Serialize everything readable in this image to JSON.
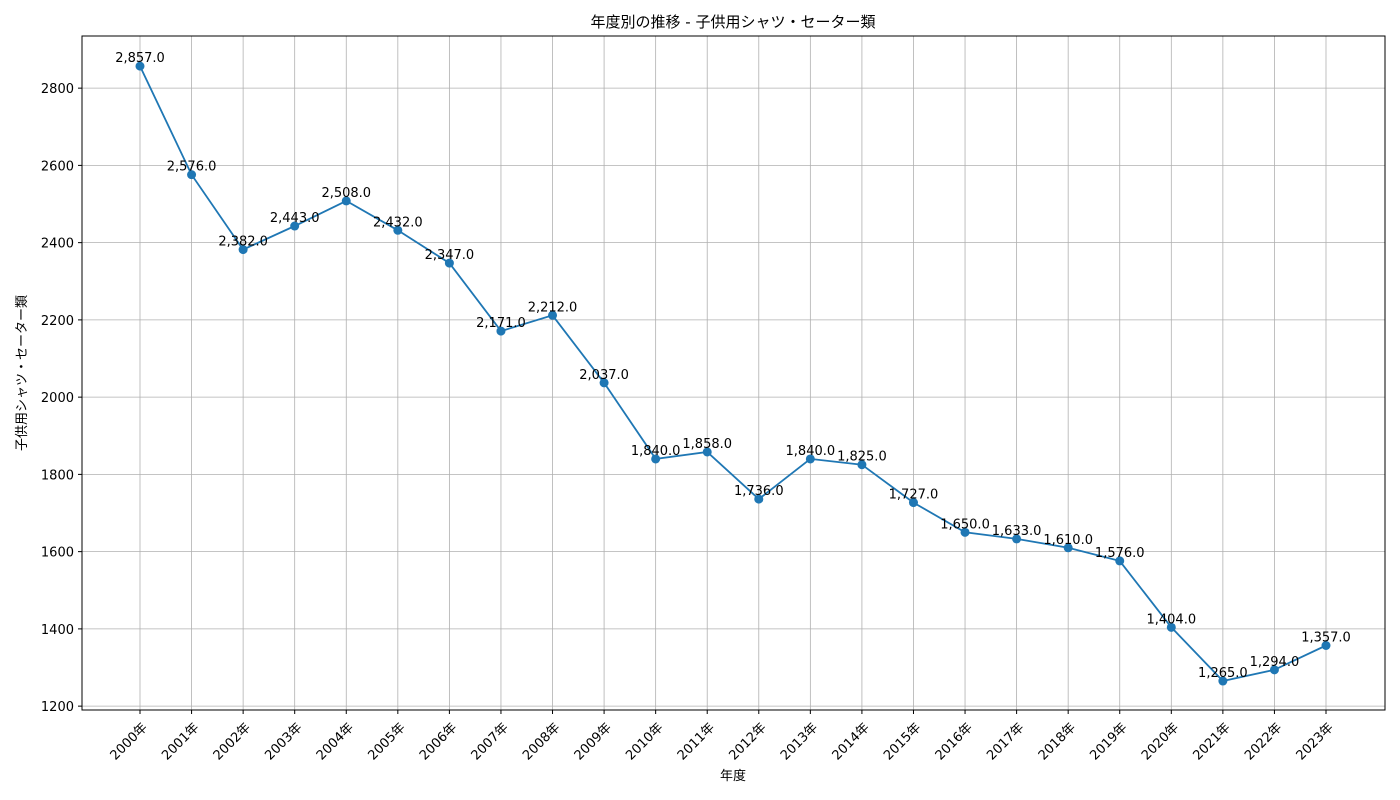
{
  "chart_data": {
    "type": "line",
    "title": "年度別の推移 - 子供用シャツ・セーター類",
    "xlabel": "年度",
    "ylabel": "子供用シャツ・セーター類",
    "categories": [
      "2000年",
      "2001年",
      "2002年",
      "2003年",
      "2004年",
      "2005年",
      "2006年",
      "2007年",
      "2008年",
      "2009年",
      "2010年",
      "2011年",
      "2012年",
      "2013年",
      "2014年",
      "2015年",
      "2016年",
      "2017年",
      "2018年",
      "2019年",
      "2020年",
      "2021年",
      "2022年",
      "2023年"
    ],
    "values": [
      2857,
      2576,
      2382,
      2443,
      2508,
      2432,
      2347,
      2171,
      2212,
      2037,
      1840,
      1858,
      1736,
      1840,
      1825,
      1727,
      1650,
      1633,
      1610,
      1576,
      1404,
      1265,
      1294,
      1357
    ],
    "data_labels": [
      "2,857.0",
      "2,576.0",
      "2,382.0",
      "2,443.0",
      "2,508.0",
      "2,432.0",
      "2,347.0",
      "2,171.0",
      "2,212.0",
      "2,037.0",
      "1,840.0",
      "1,858.0",
      "1,736.0",
      "1,840.0",
      "1,825.0",
      "1,727.0",
      "1,650.0",
      "1,633.0",
      "1,610.0",
      "1,576.0",
      "1,404.0",
      "1,265.0",
      "1,294.0",
      "1,357.0"
    ],
    "ylim": [
      1190,
      2935
    ],
    "yticks": [
      1200,
      1400,
      1600,
      1800,
      2000,
      2200,
      2400,
      2600,
      2800
    ],
    "grid": true,
    "marker": "circle",
    "color": "#1f77b4"
  }
}
